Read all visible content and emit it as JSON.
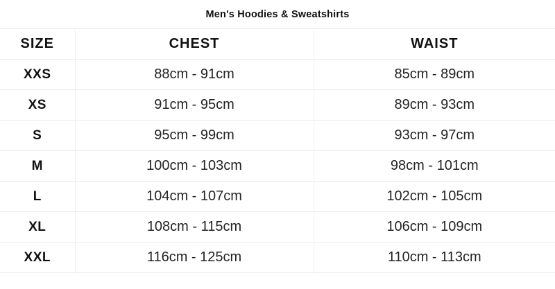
{
  "title": "Men's Hoodies & Sweatshirts",
  "table": {
    "headers": [
      "SIZE",
      "CHEST",
      "WAIST"
    ],
    "rows": [
      {
        "size": "XXS",
        "chest": "88cm - 91cm",
        "waist": "85cm - 89cm"
      },
      {
        "size": "XS",
        "chest": "91cm - 95cm",
        "waist": "89cm - 93cm"
      },
      {
        "size": "S",
        "chest": "95cm - 99cm",
        "waist": "93cm - 97cm"
      },
      {
        "size": "M",
        "chest": "100cm - 103cm",
        "waist": "98cm - 101cm"
      },
      {
        "size": "L",
        "chest": "104cm - 107cm",
        "waist": "102cm - 105cm"
      },
      {
        "size": "XL",
        "chest": "108cm - 115cm",
        "waist": "106cm - 109cm"
      },
      {
        "size": "XXL",
        "chest": "116cm - 125cm",
        "waist": "110cm - 113cm"
      }
    ]
  },
  "chart_data": {
    "type": "table",
    "title": "Men's Hoodies & Sweatshirts",
    "columns": [
      "SIZE",
      "CHEST",
      "WAIST"
    ],
    "rows": [
      [
        "XXS",
        "88cm - 91cm",
        "85cm - 89cm"
      ],
      [
        "XS",
        "91cm - 95cm",
        "89cm - 93cm"
      ],
      [
        "S",
        "95cm - 99cm",
        "93cm - 97cm"
      ],
      [
        "M",
        "100cm - 103cm",
        "98cm - 101cm"
      ],
      [
        "L",
        "104cm - 107cm",
        "102cm - 105cm"
      ],
      [
        "XL",
        "108cm - 115cm",
        "106cm - 109cm"
      ],
      [
        "XXL",
        "116cm - 125cm",
        "110cm - 113cm"
      ]
    ],
    "layout": {
      "grid": true,
      "header_style": "bold-uppercase",
      "cell_alignment": "center"
    }
  },
  "colors": {
    "background": "#ffffff",
    "text": "#111111",
    "value_text": "#232323",
    "divider": "#ececec"
  }
}
